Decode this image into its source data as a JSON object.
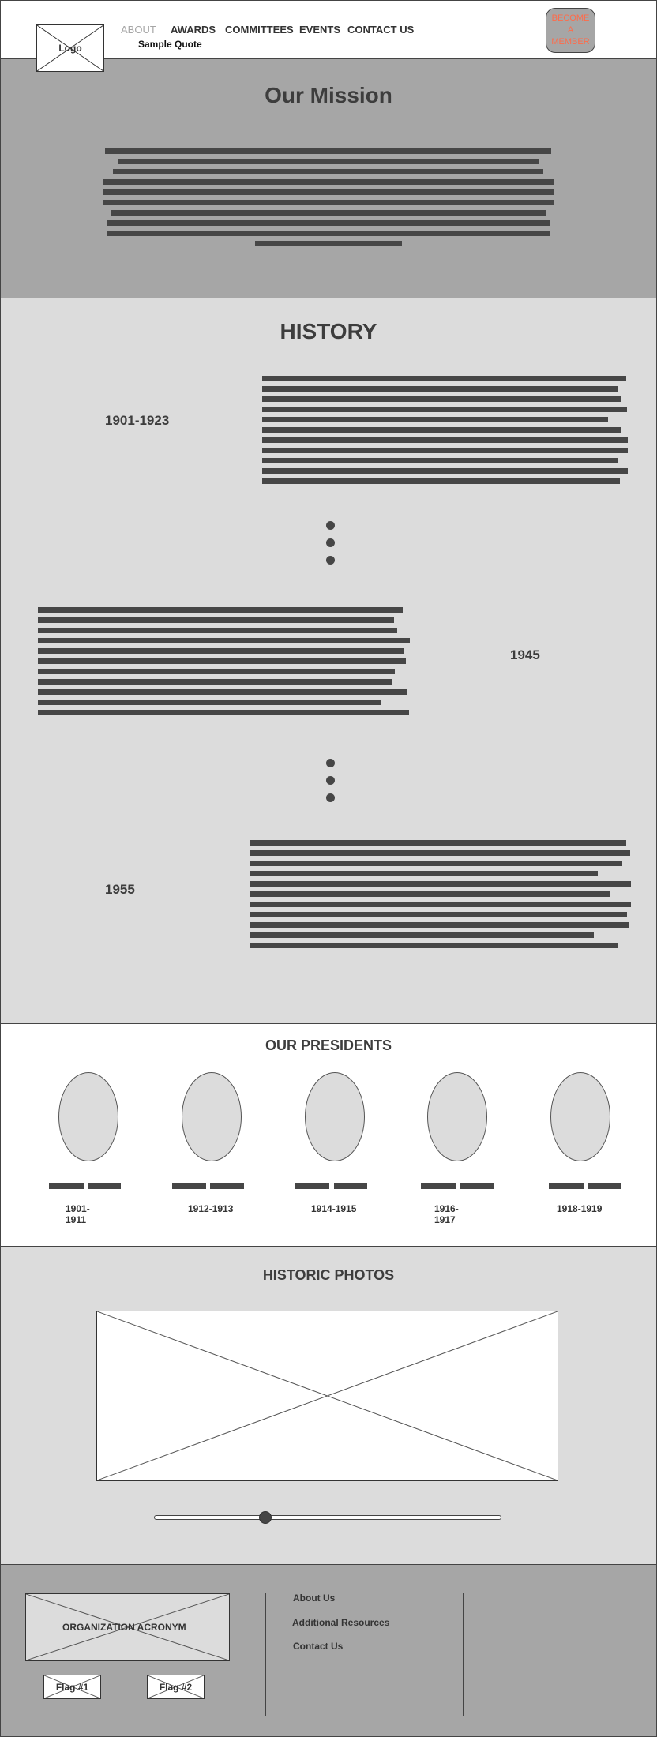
{
  "header": {
    "logo_label": "Logo",
    "nav": [
      {
        "label": "ABOUT",
        "active": true
      },
      {
        "label": "AWARDS",
        "active": false
      },
      {
        "label": "COMMITTEES",
        "active": false
      },
      {
        "label": "EVENTS",
        "active": false
      },
      {
        "label": "CONTACT US",
        "active": false
      }
    ],
    "sub_link": "Sample Quote",
    "cta_lines": [
      "BECOME",
      "A",
      "MEMBER"
    ]
  },
  "mission": {
    "title": "Our Mission"
  },
  "history": {
    "title": "HISTORY",
    "entries": [
      {
        "period": "1901-1923"
      },
      {
        "period": "1945"
      },
      {
        "period": "1955"
      }
    ]
  },
  "presidents": {
    "title": "OUR PRESIDENTS",
    "items": [
      {
        "years_line1": "1901-",
        "years_line2": "1911"
      },
      {
        "years_line1": "1912-1913",
        "years_line2": ""
      },
      {
        "years_line1": "1914-1915",
        "years_line2": ""
      },
      {
        "years_line1": "1916-",
        "years_line2": "1917"
      },
      {
        "years_line1": "1918-1919",
        "years_line2": ""
      }
    ]
  },
  "photos": {
    "title": "HISTORIC PHOTOS",
    "slider_value": 0.32
  },
  "footer": {
    "org_label": "ORGANIZATION ACRONYM",
    "flag1": "Flag #1",
    "flag2": "Flag #2",
    "links": [
      "About Us",
      "Additional Resources",
      "Contact Us"
    ]
  },
  "colors": {
    "dark_gray": "#a6a6a6",
    "light_gray": "#dcdcdc",
    "cta_text": "#ff6b4a",
    "active_nav": "#a6a6a6"
  }
}
